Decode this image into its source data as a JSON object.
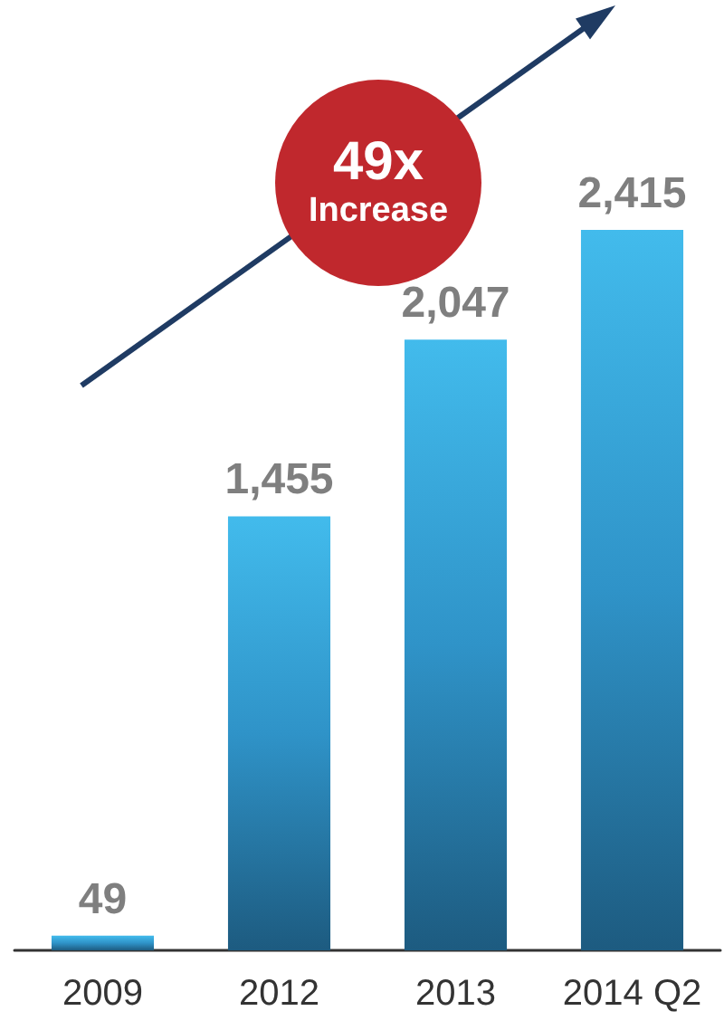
{
  "chart_data": {
    "type": "bar",
    "categories": [
      "2009",
      "2012",
      "2013",
      "2014 Q2"
    ],
    "values": [
      49,
      1455,
      2047,
      2415
    ],
    "value_labels": [
      "49",
      "1,455",
      "2,047",
      "2,415"
    ],
    "color": "#2f93c8",
    "annotations": [
      "49x",
      "Increase"
    ]
  }
}
